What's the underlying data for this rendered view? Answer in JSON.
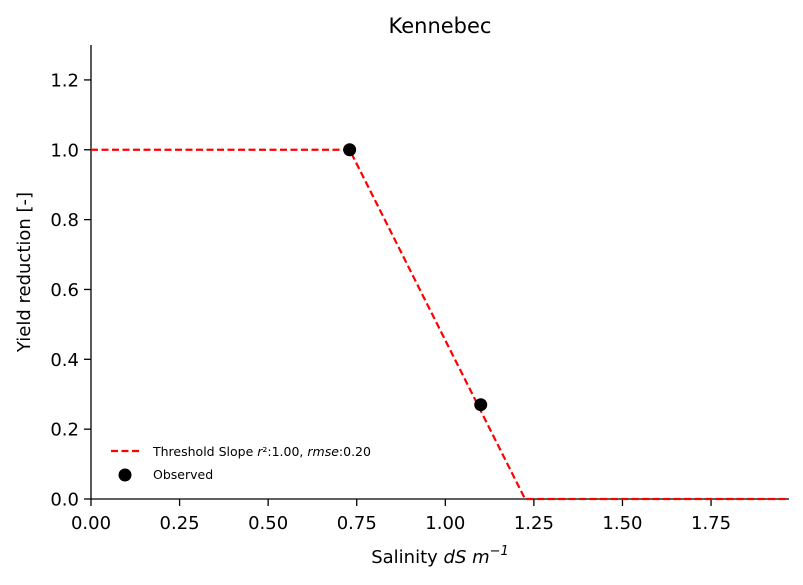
{
  "chart_data": {
    "type": "line",
    "title": "Kennebec",
    "xlabel": {
      "text": "Salinity ",
      "italic": "dS m",
      "sup": "−1"
    },
    "ylabel": "Yield reduction [-]",
    "xlim": [
      0.0,
      1.97
    ],
    "ylim": [
      0.0,
      1.3
    ],
    "xticks": [
      "0.00",
      "0.25",
      "0.50",
      "0.75",
      "1.00",
      "1.25",
      "1.50",
      "1.75"
    ],
    "xtick_values": [
      0.0,
      0.25,
      0.5,
      0.75,
      1.0,
      1.25,
      1.5,
      1.75
    ],
    "yticks": [
      "0.0",
      "0.2",
      "0.4",
      "0.6",
      "0.8",
      "1.0",
      "1.2"
    ],
    "ytick_values": [
      0.0,
      0.2,
      0.4,
      0.6,
      0.8,
      1.0,
      1.2
    ],
    "grid": false,
    "legend_position": "lower-left",
    "series": [
      {
        "name": "Threshold Slope r²:1.00, rmse:0.20",
        "kind": "dashed-line",
        "color": "#ff0000",
        "x": [
          0.0,
          0.73,
          1.225,
          1.97
        ],
        "y": [
          1.0,
          1.0,
          0.0,
          0.0
        ]
      },
      {
        "name": "Observed",
        "kind": "scatter",
        "color": "#000000",
        "x": [
          0.73,
          1.1
        ],
        "y": [
          1.0,
          0.27
        ]
      }
    ],
    "legend": {
      "line_label": {
        "pre": "Threshold Slope ",
        "r2": "r",
        "r2sup": "²",
        "r2val": ":1.00, ",
        "rmse": "rmse",
        "rmseval": ":0.20"
      },
      "scatter_label": "Observed"
    }
  }
}
